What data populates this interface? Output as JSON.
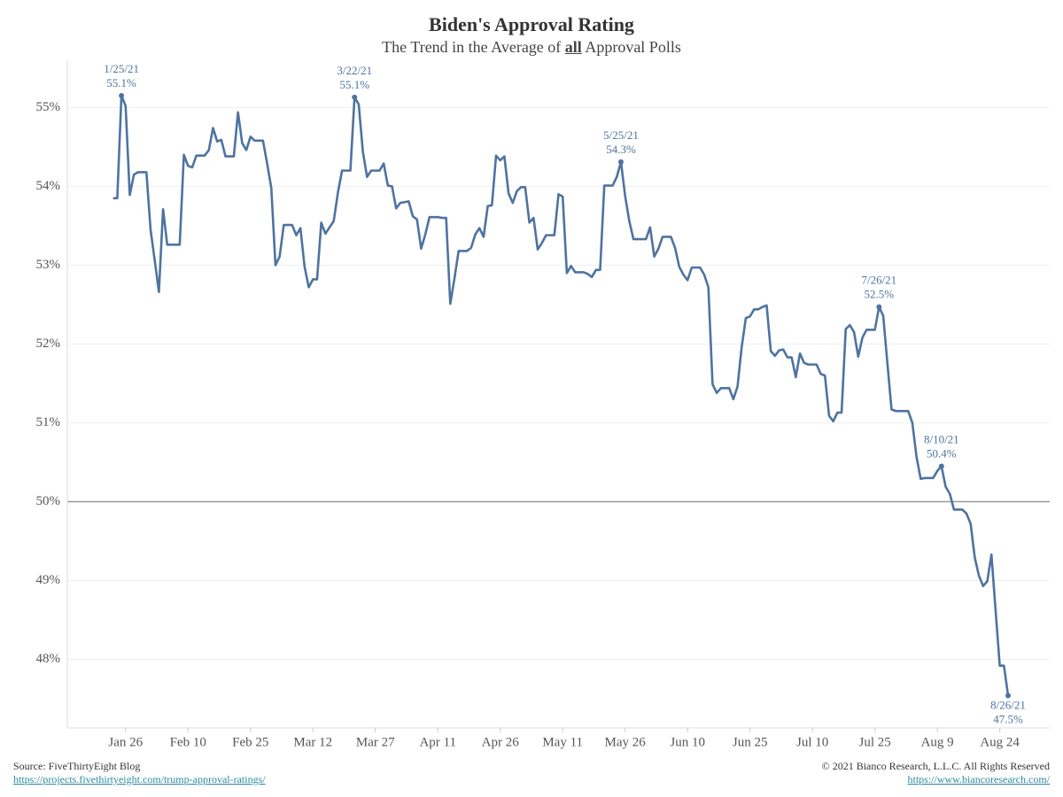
{
  "chart_data": {
    "type": "line",
    "title": "Biden's Approval Rating",
    "subtitle": [
      "The Trend in the Average of ",
      "all",
      " Approval Polls"
    ],
    "source": "Source: FiveThirtyEight Blog",
    "source_url": "https://projects.fivethirtyeight.com/trump-approval-ratings/",
    "copyright": "© 2021 Bianco Research, L.L.C. All Rights Reserved",
    "copyright_url": "https://www.biancoresearch.com/",
    "color": "#4e73a0",
    "grid": true,
    "reference_line": 50,
    "xlim": [
      "2021-01-12",
      "2021-09-05"
    ],
    "xticks": [
      {
        "value": "2021-01-26",
        "label": "Jan 26"
      },
      {
        "value": "2021-02-10",
        "label": "Feb 10"
      },
      {
        "value": "2021-02-25",
        "label": "Feb 25"
      },
      {
        "value": "2021-03-12",
        "label": "Mar 12"
      },
      {
        "value": "2021-03-27",
        "label": "Mar 27"
      },
      {
        "value": "2021-04-11",
        "label": "Apr 11"
      },
      {
        "value": "2021-04-26",
        "label": "Apr 26"
      },
      {
        "value": "2021-05-11",
        "label": "May 11"
      },
      {
        "value": "2021-05-26",
        "label": "May 26"
      },
      {
        "value": "2021-06-10",
        "label": "Jun 10"
      },
      {
        "value": "2021-06-25",
        "label": "Jun 25"
      },
      {
        "value": "2021-07-10",
        "label": "Jul 10"
      },
      {
        "value": "2021-07-25",
        "label": "Jul 25"
      },
      {
        "value": "2021-08-09",
        "label": "Aug 9"
      },
      {
        "value": "2021-08-24",
        "label": "Aug 24"
      }
    ],
    "ylim": [
      47.13,
      55.6
    ],
    "yticks": [
      {
        "value": 48,
        "label": "48%"
      },
      {
        "value": 49,
        "label": "49%"
      },
      {
        "value": 50,
        "label": "50%"
      },
      {
        "value": 51,
        "label": "51%"
      },
      {
        "value": 52,
        "label": "52%"
      },
      {
        "value": 53,
        "label": "53%"
      },
      {
        "value": 54,
        "label": "54%"
      },
      {
        "value": 55,
        "label": "55%"
      }
    ],
    "x": [
      "2021-01-23",
      "2021-01-24",
      "2021-01-25",
      "2021-01-26",
      "2021-01-27",
      "2021-01-28",
      "2021-01-29",
      "2021-01-31",
      "2021-02-01",
      "2021-02-02",
      "2021-02-03",
      "2021-02-04",
      "2021-02-05",
      "2021-02-08",
      "2021-02-09",
      "2021-02-10",
      "2021-02-11",
      "2021-02-12",
      "2021-02-14",
      "2021-02-15",
      "2021-02-16",
      "2021-02-17",
      "2021-02-18",
      "2021-02-19",
      "2021-02-21",
      "2021-02-22",
      "2021-02-23",
      "2021-02-24",
      "2021-02-25",
      "2021-02-26",
      "2021-02-28",
      "2021-03-01",
      "2021-03-02",
      "2021-03-03",
      "2021-03-04",
      "2021-03-05",
      "2021-03-07",
      "2021-03-08",
      "2021-03-09",
      "2021-03-10",
      "2021-03-11",
      "2021-03-12",
      "2021-03-13",
      "2021-03-14",
      "2021-03-15",
      "2021-03-17",
      "2021-03-18",
      "2021-03-19",
      "2021-03-21",
      "2021-03-22",
      "2021-03-23",
      "2021-03-24",
      "2021-03-25",
      "2021-03-26",
      "2021-03-28",
      "2021-03-29",
      "2021-03-30",
      "2021-03-31",
      "2021-04-01",
      "2021-04-02",
      "2021-04-04",
      "2021-04-05",
      "2021-04-06",
      "2021-04-07",
      "2021-04-08",
      "2021-04-09",
      "2021-04-11",
      "2021-04-12",
      "2021-04-13",
      "2021-04-14",
      "2021-04-15",
      "2021-04-16",
      "2021-04-18",
      "2021-04-19",
      "2021-04-20",
      "2021-04-21",
      "2021-04-22",
      "2021-04-23",
      "2021-04-24",
      "2021-04-25",
      "2021-04-26",
      "2021-04-27",
      "2021-04-28",
      "2021-04-29",
      "2021-04-30",
      "2021-05-01",
      "2021-05-02",
      "2021-05-03",
      "2021-05-04",
      "2021-05-05",
      "2021-05-06",
      "2021-05-07",
      "2021-05-09",
      "2021-05-10",
      "2021-05-11",
      "2021-05-12",
      "2021-05-13",
      "2021-05-14",
      "2021-05-16",
      "2021-05-17",
      "2021-05-18",
      "2021-05-19",
      "2021-05-20",
      "2021-05-21",
      "2021-05-23",
      "2021-05-24",
      "2021-05-25",
      "2021-05-26",
      "2021-05-27",
      "2021-05-28",
      "2021-05-31",
      "2021-06-01",
      "2021-06-02",
      "2021-06-03",
      "2021-06-04",
      "2021-06-06",
      "2021-06-07",
      "2021-06-08",
      "2021-06-09",
      "2021-06-10",
      "2021-06-11",
      "2021-06-13",
      "2021-06-14",
      "2021-06-15",
      "2021-06-16",
      "2021-06-17",
      "2021-06-18",
      "2021-06-20",
      "2021-06-21",
      "2021-06-22",
      "2021-06-23",
      "2021-06-24",
      "2021-06-25",
      "2021-06-26",
      "2021-06-27",
      "2021-06-28",
      "2021-06-29",
      "2021-06-30",
      "2021-07-01",
      "2021-07-02",
      "2021-07-03",
      "2021-07-04",
      "2021-07-05",
      "2021-07-06",
      "2021-07-07",
      "2021-07-08",
      "2021-07-09",
      "2021-07-11",
      "2021-07-12",
      "2021-07-13",
      "2021-07-14",
      "2021-07-15",
      "2021-07-16",
      "2021-07-17",
      "2021-07-18",
      "2021-07-19",
      "2021-07-20",
      "2021-07-21",
      "2021-07-22",
      "2021-07-23",
      "2021-07-25",
      "2021-07-26",
      "2021-07-27",
      "2021-07-28",
      "2021-07-29",
      "2021-07-30",
      "2021-08-02",
      "2021-08-03",
      "2021-08-04",
      "2021-08-05",
      "2021-08-06",
      "2021-08-08",
      "2021-08-09",
      "2021-08-10",
      "2021-08-11",
      "2021-08-12",
      "2021-08-13",
      "2021-08-15",
      "2021-08-16",
      "2021-08-17",
      "2021-08-18",
      "2021-08-19",
      "2021-08-20",
      "2021-08-21",
      "2021-08-22",
      "2021-08-23",
      "2021-08-24",
      "2021-08-25",
      "2021-08-26"
    ],
    "values": [
      53.85,
      53.85,
      55.15,
      55.02,
      53.89,
      54.15,
      54.18,
      54.18,
      53.45,
      53.06,
      52.66,
      53.71,
      53.26,
      53.26,
      54.4,
      54.26,
      54.24,
      54.39,
      54.39,
      54.46,
      54.74,
      54.57,
      54.59,
      54.38,
      54.38,
      54.94,
      54.55,
      54.46,
      54.63,
      54.58,
      54.58,
      54.29,
      53.98,
      53.0,
      53.11,
      53.51,
      53.51,
      53.38,
      53.47,
      52.98,
      52.72,
      52.82,
      52.82,
      53.54,
      53.4,
      53.56,
      53.92,
      54.2,
      54.2,
      55.13,
      55.04,
      54.44,
      54.12,
      54.2,
      54.2,
      54.29,
      54.01,
      54.0,
      53.72,
      53.79,
      53.81,
      53.62,
      53.58,
      53.21,
      53.39,
      53.61,
      53.61,
      53.6,
      53.6,
      52.51,
      52.83,
      53.18,
      53.18,
      53.22,
      53.39,
      53.47,
      53.36,
      53.75,
      53.76,
      54.39,
      54.33,
      54.38,
      53.91,
      53.79,
      53.94,
      53.99,
      53.99,
      53.54,
      53.6,
      53.2,
      53.28,
      53.38,
      53.38,
      53.9,
      53.87,
      52.9,
      52.99,
      52.91,
      52.91,
      52.89,
      52.85,
      52.94,
      52.94,
      54.01,
      54.01,
      54.12,
      54.31,
      53.88,
      53.56,
      53.33,
      53.33,
      53.48,
      53.11,
      53.21,
      53.36,
      53.36,
      53.22,
      52.98,
      52.88,
      52.81,
      52.97,
      52.97,
      52.88,
      52.72,
      51.49,
      51.38,
      51.44,
      51.44,
      51.3,
      51.46,
      51.96,
      52.33,
      52.35,
      52.44,
      52.44,
      52.47,
      52.49,
      51.91,
      51.85,
      51.92,
      51.93,
      51.83,
      51.83,
      51.58,
      51.88,
      51.76,
      51.74,
      51.74,
      51.62,
      51.6,
      51.09,
      51.02,
      51.13,
      51.13,
      52.19,
      52.24,
      52.15,
      51.84,
      52.08,
      52.18,
      52.18,
      52.47,
      52.36,
      51.76,
      51.17,
      51.15,
      51.15,
      51.0,
      50.57,
      50.29,
      50.3,
      50.3,
      50.39,
      50.45,
      50.19,
      50.1,
      49.9,
      49.9,
      49.85,
      49.72,
      49.29,
      49.06,
      48.93,
      48.99,
      49.33,
      48.62,
      47.92,
      47.92,
      47.54
    ],
    "annotations": [
      {
        "x": "2021-01-25",
        "label": "1/25/21",
        "value": 55.15,
        "value_label": "55.1%"
      },
      {
        "x": "2021-03-22",
        "label": "3/22/21",
        "value": 55.13,
        "value_label": "55.1%"
      },
      {
        "x": "2021-05-25",
        "label": "5/25/21",
        "value": 54.31,
        "value_label": "54.3%"
      },
      {
        "x": "2021-07-26",
        "label": "7/26/21",
        "value": 52.47,
        "value_label": "52.5%"
      },
      {
        "x": "2021-08-10",
        "label": "8/10/21",
        "value": 50.45,
        "value_label": "50.4%"
      },
      {
        "x": "2021-08-26",
        "label": "8/26/21",
        "value": 47.54,
        "value_label": "47.5%"
      }
    ]
  }
}
